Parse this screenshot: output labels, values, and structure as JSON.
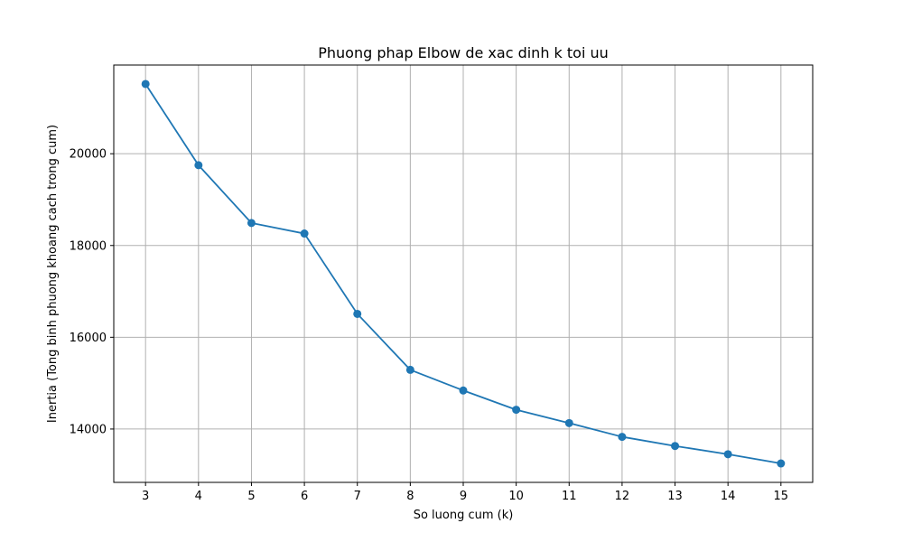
{
  "chart_data": {
    "type": "line",
    "title": "Phuong phap Elbow de xac dinh k toi uu",
    "xlabel": "So luong cum (k)",
    "ylabel": "Inertia (Tong binh phuong khoang cach trong cum)",
    "x": [
      3,
      4,
      5,
      6,
      7,
      8,
      9,
      10,
      11,
      12,
      13,
      14,
      15
    ],
    "series": [
      {
        "values": [
          21520,
          19750,
          18490,
          18260,
          16510,
          15290,
          14840,
          14420,
          14130,
          13830,
          13630,
          13450,
          13250
        ],
        "color": "#1f77b4",
        "marker": "circle"
      }
    ],
    "xticks": [
      "3",
      "4",
      "5",
      "6",
      "7",
      "8",
      "9",
      "10",
      "11",
      "12",
      "13",
      "14",
      "15"
    ],
    "yticks": [
      "14000",
      "16000",
      "18000",
      "20000"
    ],
    "xlim": [
      2.4,
      15.6
    ],
    "ylim": [
      12837,
      21933
    ],
    "grid": true
  }
}
